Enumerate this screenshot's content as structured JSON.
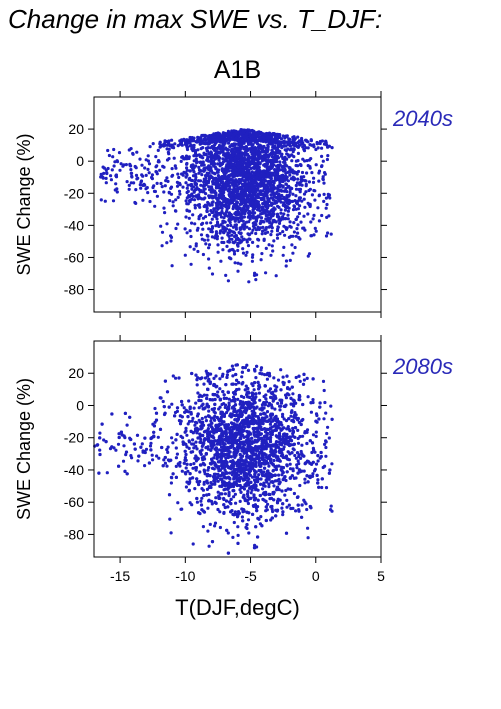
{
  "title": "Change in max SWE vs. T_DJF:",
  "scenario": "A1B",
  "chart_data": [
    {
      "type": "scatter",
      "period_label": "2040s",
      "ylabel": "SWE Change (%)",
      "xlabel": "",
      "xlim": [
        -17,
        5
      ],
      "ylim": [
        -94,
        40
      ],
      "xticks": [
        -15,
        -10,
        -5,
        0,
        5
      ],
      "yticks": [
        20,
        0,
        -20,
        -40,
        -60,
        -80
      ],
      "x_tick_labels_shown": false,
      "point_color": "#2020c0",
      "cloud": {
        "x_range": [
          -16.5,
          1.3
        ],
        "y_range": [
          -79,
          26
        ],
        "dense_center": {
          "x": -5.5,
          "y": -8
        },
        "approx_points": 3000
      }
    },
    {
      "type": "scatter",
      "period_label": "2080s",
      "ylabel": "SWE Change (%)",
      "xlabel": "T(DJF,degC)",
      "xlim": [
        -17,
        5
      ],
      "ylim": [
        -94,
        40
      ],
      "xticks": [
        -15,
        -10,
        -5,
        0,
        5
      ],
      "yticks": [
        20,
        0,
        -20,
        -40,
        -60,
        -80
      ],
      "x_tick_labels_shown": true,
      "point_color": "#2020c0",
      "cloud": {
        "x_range": [
          -17,
          1.3
        ],
        "y_range": [
          -92,
          32
        ],
        "dense_center": {
          "x": -5.5,
          "y": -25
        },
        "approx_points": 3000
      }
    }
  ]
}
